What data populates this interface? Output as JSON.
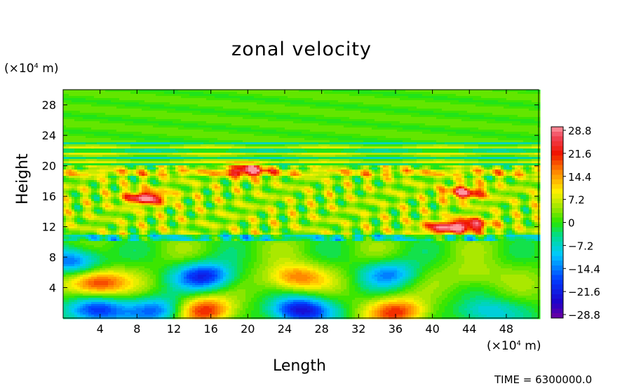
{
  "chart_data": {
    "type": "heatmap",
    "title": "zonal velocity",
    "xlabel": "Length",
    "ylabel": "Height",
    "x_unit_prefix": "(×10",
    "x_unit_exp": "4",
    "x_unit_suffix": " m)",
    "y_unit_prefix": "(×10",
    "y_unit_exp": "4",
    "y_unit_suffix": " m)",
    "xlim": [
      0,
      51.5
    ],
    "ylim": [
      0,
      30
    ],
    "xticks": [
      4,
      8,
      12,
      16,
      20,
      24,
      28,
      32,
      36,
      40,
      44,
      48
    ],
    "yticks": [
      4,
      8,
      12,
      16,
      20,
      24,
      28
    ],
    "colorbar": {
      "labels": [
        "28.8",
        "21.6",
        "14.4",
        "7.2",
        "0",
        "−7.2",
        "−14.4",
        "−21.6",
        "−28.8"
      ],
      "range": [
        -28.8,
        28.8
      ],
      "levels": 40
    },
    "features": [
      {
        "x": 3.5,
        "y": 1.0,
        "value": -22
      },
      {
        "x": 10.5,
        "y": 1.0,
        "value": -16
      },
      {
        "x": 15.5,
        "y": 1.0,
        "value": 20
      },
      {
        "x": 25.5,
        "y": 1.0,
        "value": -25
      },
      {
        "x": 36.5,
        "y": 0.8,
        "value": 18
      },
      {
        "x": 45.5,
        "y": 0.8,
        "value": -12
      },
      {
        "x": 3.5,
        "y": 4.6,
        "value": 21
      },
      {
        "x": 15.5,
        "y": 5.5,
        "value": -21
      },
      {
        "x": 25.0,
        "y": 5.3,
        "value": 16
      },
      {
        "x": 35.5,
        "y": 5.8,
        "value": -13
      },
      {
        "x": 44.5,
        "y": 5.5,
        "value": 6
      },
      {
        "x": 1.0,
        "y": 7.5,
        "value": -17
      },
      {
        "x": 9.0,
        "y": 15.8,
        "value": 25
      },
      {
        "x": 20.0,
        "y": 19.5,
        "value": 22
      },
      {
        "x": 43.5,
        "y": 16.5,
        "value": 21
      },
      {
        "x": 44.0,
        "y": 12.2,
        "value": 22
      },
      {
        "x": 41.0,
        "y": 11.8,
        "value": 19
      }
    ]
  },
  "time_text": "TIME = 6300000.0"
}
